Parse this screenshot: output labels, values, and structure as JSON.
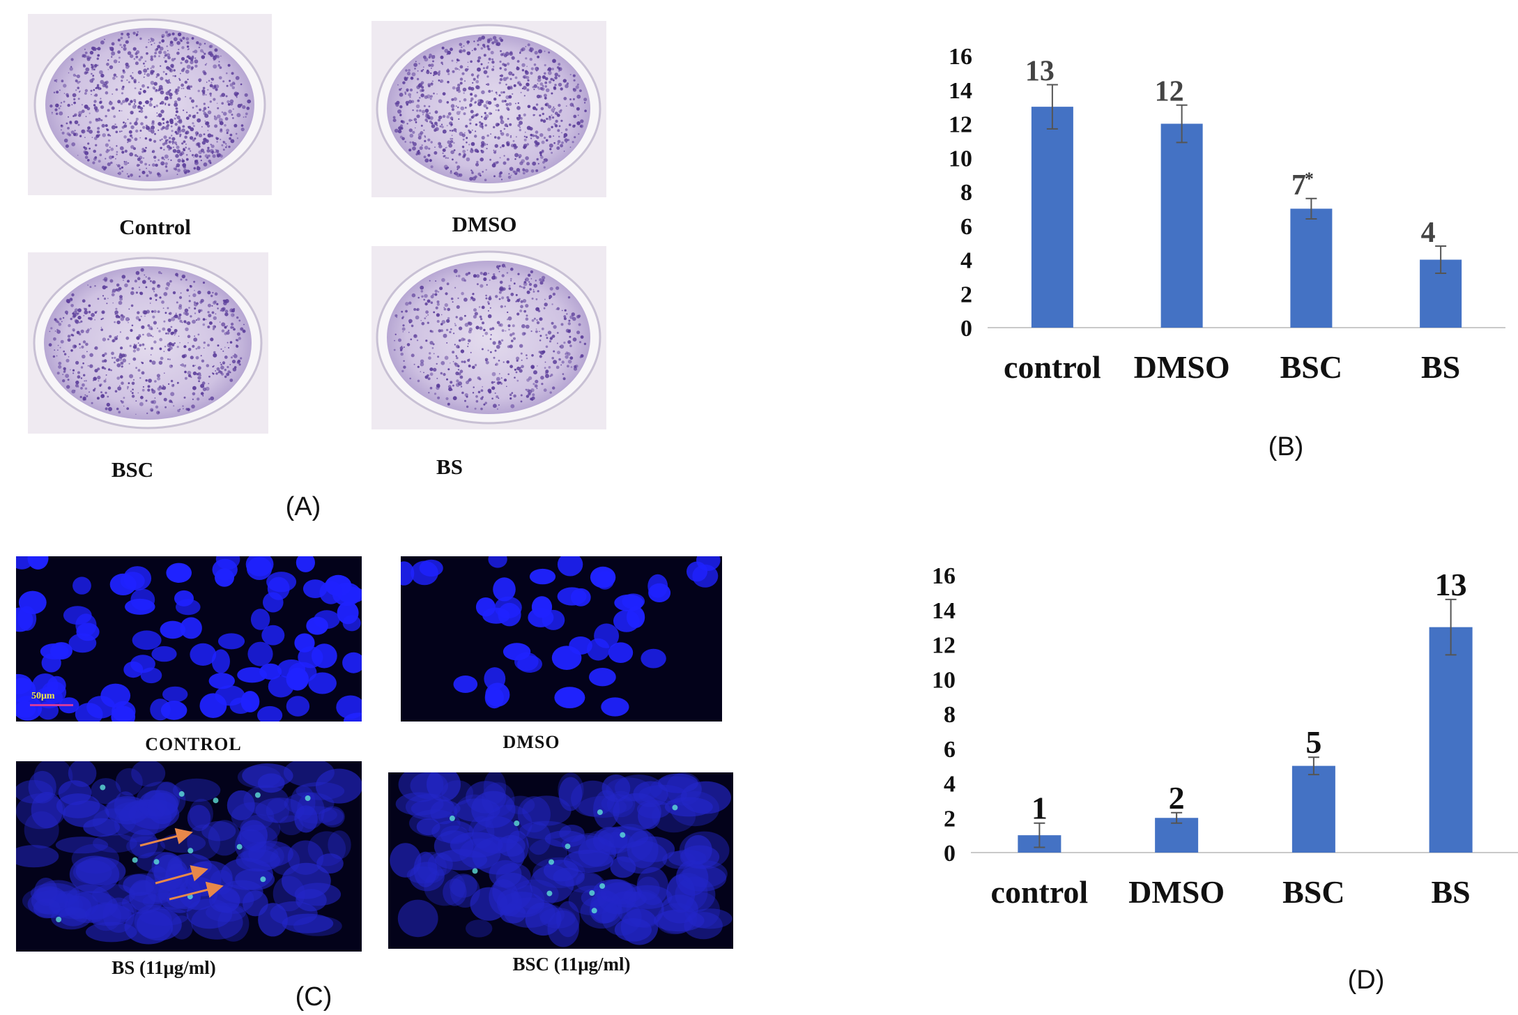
{
  "panels": {
    "A": {
      "letter": "(A)",
      "labels": [
        "Control",
        "DMSO",
        "BSC",
        "BS"
      ]
    },
    "B": {
      "letter": "(B)"
    },
    "C": {
      "letter": "(C)",
      "labels": [
        "CONTROL",
        "DMSO",
        "BS (11μg/ml)",
        "BSC (11μg/ml)"
      ],
      "scale_bar": "50μm"
    },
    "D": {
      "letter": "(D)"
    }
  },
  "colors": {
    "bar": "#4472c4",
    "dish_stain": "#5b3d9a",
    "nuclei": "#1f22ff",
    "arrow": "#e8884a"
  },
  "chart_data": [
    {
      "type": "bar",
      "panel": "B",
      "categories": [
        "control",
        "DMSO",
        "BSC",
        "BS"
      ],
      "values": [
        13,
        12,
        7,
        4
      ],
      "data_labels": [
        "13",
        "12",
        "7",
        "4"
      ],
      "errors": [
        1.3,
        1.1,
        0.6,
        0.8
      ],
      "marker": {
        "category_index": 2,
        "text": "*"
      },
      "ylim": [
        0,
        16
      ],
      "yticks": [
        "0",
        "2",
        "4",
        "6",
        "8",
        "10",
        "12",
        "14",
        "16"
      ],
      "title": "",
      "xlabel": "",
      "ylabel": "",
      "grid": false
    },
    {
      "type": "bar",
      "panel": "D",
      "categories": [
        "control",
        "DMSO",
        "BSC",
        "BS"
      ],
      "values": [
        1,
        2,
        5,
        13
      ],
      "data_labels": [
        "1",
        "2",
        "5",
        "13"
      ],
      "errors": [
        0.7,
        0.3,
        0.5,
        1.6
      ],
      "ylim": [
        0,
        16
      ],
      "yticks": [
        "0",
        "2",
        "4",
        "6",
        "8",
        "10",
        "12",
        "14",
        "16"
      ],
      "title": "",
      "xlabel": "",
      "ylabel": "",
      "grid": false
    }
  ]
}
